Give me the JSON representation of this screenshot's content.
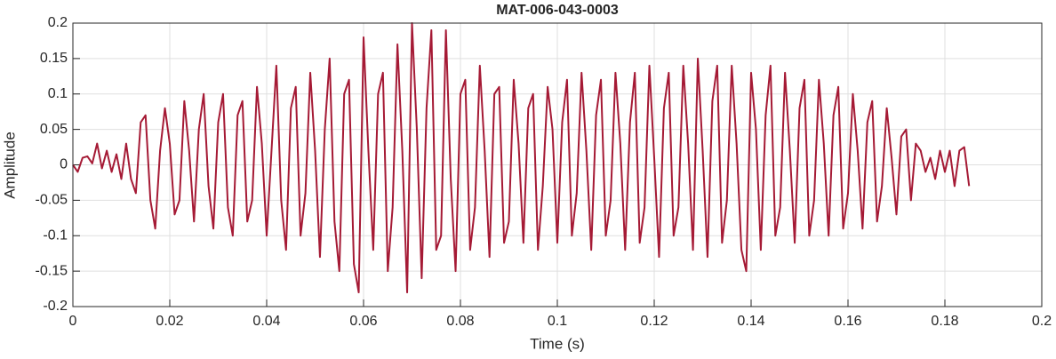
{
  "chart_data": {
    "type": "line",
    "title": "MAT-006-043-0003",
    "xlabel": "Time (s)",
    "ylabel": "Amplitude",
    "color": "#a51a35",
    "grid": true,
    "xlim": [
      0,
      0.2
    ],
    "ylim": [
      -0.2,
      0.2
    ],
    "xticks": [
      0,
      0.02,
      0.04,
      0.06,
      0.08,
      0.1,
      0.12,
      0.14,
      0.16,
      0.18,
      0.2
    ],
    "yticks": [
      -0.2,
      -0.15,
      -0.1,
      -0.05,
      0,
      0.05,
      0.1,
      0.15,
      0.2
    ],
    "x": [
      0,
      0.001,
      0.002,
      0.003,
      0.004,
      0.005,
      0.006,
      0.007,
      0.008,
      0.009,
      0.01,
      0.011,
      0.012,
      0.013,
      0.014,
      0.015,
      0.016,
      0.017,
      0.018,
      0.019,
      0.02,
      0.021,
      0.022,
      0.023,
      0.024,
      0.025,
      0.026,
      0.027,
      0.028,
      0.029,
      0.03,
      0.031,
      0.032,
      0.033,
      0.034,
      0.035,
      0.036,
      0.037,
      0.038,
      0.039,
      0.04,
      0.041,
      0.042,
      0.043,
      0.044,
      0.045,
      0.046,
      0.047,
      0.048,
      0.049,
      0.05,
      0.051,
      0.052,
      0.053,
      0.054,
      0.055,
      0.056,
      0.057,
      0.058,
      0.059,
      0.06,
      0.061,
      0.062,
      0.063,
      0.064,
      0.065,
      0.066,
      0.067,
      0.068,
      0.069,
      0.07,
      0.071,
      0.072,
      0.073,
      0.074,
      0.075,
      0.076,
      0.077,
      0.078,
      0.079,
      0.08,
      0.081,
      0.082,
      0.083,
      0.084,
      0.085,
      0.086,
      0.087,
      0.088,
      0.089,
      0.09,
      0.091,
      0.092,
      0.093,
      0.094,
      0.095,
      0.096,
      0.097,
      0.098,
      0.099,
      0.1,
      0.101,
      0.102,
      0.103,
      0.104,
      0.105,
      0.106,
      0.107,
      0.108,
      0.109,
      0.11,
      0.111,
      0.112,
      0.113,
      0.114,
      0.115,
      0.116,
      0.117,
      0.118,
      0.119,
      0.12,
      0.121,
      0.122,
      0.123,
      0.124,
      0.125,
      0.126,
      0.127,
      0.128,
      0.129,
      0.13,
      0.131,
      0.132,
      0.133,
      0.134,
      0.135,
      0.136,
      0.137,
      0.138,
      0.139,
      0.14,
      0.141,
      0.142,
      0.143,
      0.144,
      0.145,
      0.146,
      0.147,
      0.148,
      0.149,
      0.15,
      0.151,
      0.152,
      0.153,
      0.154,
      0.155,
      0.156,
      0.157,
      0.158,
      0.159,
      0.16,
      0.161,
      0.162,
      0.163,
      0.164,
      0.165,
      0.166,
      0.167,
      0.168,
      0.169,
      0.17,
      0.171,
      0.172,
      0.173,
      0.174,
      0.175,
      0.176,
      0.177,
      0.178,
      0.179,
      0.18,
      0.181,
      0.182,
      0.183,
      0.184,
      0.185
    ],
    "values": [
      0,
      -0.01,
      0.01,
      0.012,
      0.002,
      0.03,
      -0.005,
      0.02,
      -0.01,
      0.015,
      -0.02,
      0.03,
      -0.02,
      -0.04,
      0.06,
      0.07,
      -0.05,
      -0.09,
      0.02,
      0.08,
      0.03,
      -0.07,
      -0.05,
      0.09,
      0.02,
      -0.08,
      0.05,
      0.1,
      -0.03,
      -0.09,
      0.06,
      0.1,
      -0.06,
      -0.1,
      0.07,
      0.09,
      -0.08,
      -0.05,
      0.11,
      0.03,
      -0.1,
      0.02,
      0.14,
      -0.05,
      -0.12,
      0.08,
      0.11,
      -0.1,
      -0.04,
      0.13,
      0.02,
      -0.13,
      0.05,
      0.15,
      -0.08,
      -0.15,
      0.1,
      0.12,
      -0.14,
      -0.18,
      0.18,
      0.02,
      -0.12,
      0.1,
      0.13,
      -0.15,
      -0.06,
      0.17,
      0.02,
      -0.18,
      0.2,
      0.05,
      -0.16,
      0.08,
      0.19,
      -0.12,
      -0.1,
      0.19,
      -0.02,
      -0.15,
      0.1,
      0.12,
      -0.12,
      -0.06,
      0.14,
      0.02,
      -0.13,
      0.1,
      0.11,
      -0.11,
      -0.08,
      0.12,
      0.03,
      -0.11,
      0.08,
      0.1,
      -0.12,
      -0.03,
      0.11,
      0.05,
      -0.11,
      0.06,
      0.12,
      -0.1,
      -0.04,
      0.13,
      0.02,
      -0.12,
      0.07,
      0.12,
      -0.1,
      -0.05,
      0.13,
      0.03,
      -0.12,
      0.06,
      0.13,
      -0.11,
      -0.06,
      0.14,
      0.01,
      -0.13,
      0.08,
      0.13,
      -0.1,
      -0.06,
      0.14,
      0.03,
      -0.12,
      0.15,
      0.02,
      -0.13,
      0.09,
      0.14,
      -0.11,
      -0.05,
      0.14,
      0.03,
      -0.12,
      -0.15,
      0.13,
      0.05,
      -0.12,
      0.07,
      0.14,
      -0.1,
      -0.06,
      0.13,
      0.02,
      -0.11,
      0.08,
      0.12,
      -0.1,
      -0.05,
      0.12,
      0.03,
      -0.1,
      0.07,
      0.11,
      -0.09,
      -0.04,
      0.1,
      0.02,
      -0.09,
      0.06,
      0.09,
      -0.08,
      -0.03,
      0.08,
      0.01,
      -0.07,
      0.04,
      0.05,
      -0.05,
      0.03,
      0.02,
      -0.01,
      0.01,
      -0.02,
      0.02,
      -0.01,
      0.02,
      -0.03,
      0.02,
      0.025,
      -0.03
    ]
  }
}
